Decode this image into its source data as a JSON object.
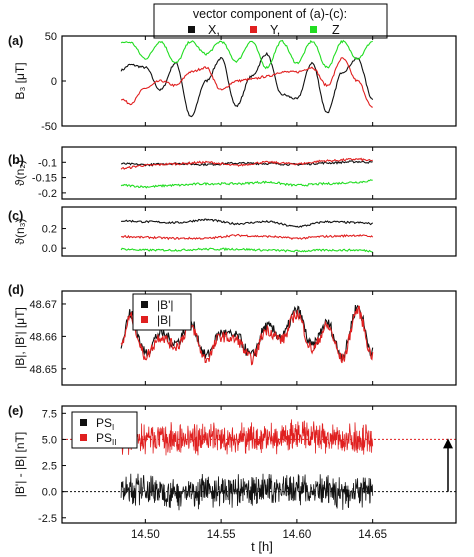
{
  "legend_top": {
    "title": "vector component of (a)-(c):",
    "items": [
      {
        "label": "X,",
        "color": "#111111"
      },
      {
        "label": "Y,",
        "color": "#e02020"
      },
      {
        "label": "Z",
        "color": "#22dd22"
      }
    ]
  },
  "colors": {
    "black": "#111111",
    "red": "#e02020",
    "green": "#22dd22",
    "axis": "#000000"
  },
  "x_axis": {
    "label": "t [h]",
    "ticks": [
      14.5,
      14.55,
      14.6,
      14.65
    ],
    "tick_labels": [
      "14.50",
      "14.55",
      "14.60",
      "14.65"
    ],
    "range": [
      14.445,
      14.705
    ]
  },
  "chart_data": [
    {
      "type": "line",
      "panel": "(a)",
      "ylabel": "B₃ [μT]",
      "ylabel_parts": {
        "base": "B",
        "sub": "3",
        "unit": "[μT]"
      },
      "ylim": [
        -50,
        50
      ],
      "y_ticks": [
        -50,
        0,
        50
      ],
      "y_tick_labels": [
        "-50",
        "0",
        "50"
      ],
      "x": [
        14.484,
        14.49,
        14.5,
        14.51,
        14.52,
        14.53,
        14.54,
        14.55,
        14.56,
        14.57,
        14.58,
        14.59,
        14.6,
        14.61,
        14.62,
        14.63,
        14.64,
        14.65
      ],
      "series": [
        {
          "name": "X",
          "color": "#111111",
          "values": [
            12,
            18,
            15,
            -10,
            20,
            -40,
            0,
            25,
            -28,
            5,
            30,
            -15,
            -20,
            20,
            -35,
            10,
            25,
            -20
          ]
        },
        {
          "name": "Y",
          "color": "#e02020",
          "values": [
            -20,
            -25,
            -8,
            0,
            -5,
            10,
            15,
            -10,
            0,
            2,
            5,
            10,
            10,
            15,
            -5,
            25,
            0,
            -30
          ]
        },
        {
          "name": "Z",
          "color": "#22dd22",
          "values": [
            43,
            43,
            25,
            44,
            20,
            44,
            30,
            44,
            22,
            44,
            15,
            44,
            20,
            44,
            15,
            44,
            25,
            44
          ]
        }
      ]
    },
    {
      "type": "line",
      "panel": "(b)",
      "ylabel": "ϑ(n₂)",
      "ylabel_parts": {
        "base": "ϑ(n",
        "sub": "2",
        "tail": ")"
      },
      "ylim": [
        -0.22,
        -0.05
      ],
      "y_ticks": [
        -0.1,
        -0.15,
        -0.2
      ],
      "y_tick_labels": [
        "-0.1",
        "-0.15",
        "-0.2"
      ],
      "x": [
        14.484,
        14.5,
        14.52,
        14.54,
        14.56,
        14.58,
        14.6,
        14.62,
        14.64,
        14.65
      ],
      "series": [
        {
          "name": "X",
          "color": "#111111",
          "values": [
            -0.105,
            -0.108,
            -0.104,
            -0.107,
            -0.103,
            -0.104,
            -0.107,
            -0.102,
            -0.098,
            -0.1
          ]
        },
        {
          "name": "Y",
          "color": "#e02020",
          "values": [
            -0.12,
            -0.11,
            -0.105,
            -0.1,
            -0.11,
            -0.1,
            -0.105,
            -0.095,
            -0.09,
            -0.095
          ]
        },
        {
          "name": "Z",
          "color": "#22dd22",
          "values": [
            -0.175,
            -0.18,
            -0.175,
            -0.17,
            -0.17,
            -0.165,
            -0.175,
            -0.17,
            -0.165,
            -0.16
          ]
        }
      ]
    },
    {
      "type": "line",
      "panel": "(c)",
      "ylabel": "ϑ(n₃)",
      "ylabel_parts": {
        "base": "ϑ(n",
        "sub": "3",
        "tail": ")"
      },
      "ylim": [
        -0.08,
        0.42
      ],
      "y_ticks": [
        0.0,
        0.2
      ],
      "y_tick_labels": [
        "0.0",
        "0.2"
      ],
      "x": [
        14.484,
        14.5,
        14.52,
        14.54,
        14.56,
        14.58,
        14.6,
        14.62,
        14.64,
        14.65
      ],
      "series": [
        {
          "name": "X",
          "color": "#111111",
          "values": [
            0.28,
            0.27,
            0.26,
            0.29,
            0.25,
            0.27,
            0.22,
            0.27,
            0.26,
            0.25
          ]
        },
        {
          "name": "Y",
          "color": "#e02020",
          "values": [
            0.12,
            0.11,
            0.1,
            0.1,
            0.13,
            0.12,
            0.1,
            0.12,
            0.13,
            0.12
          ]
        },
        {
          "name": "Z",
          "color": "#22dd22",
          "values": [
            -0.01,
            -0.02,
            -0.02,
            -0.01,
            -0.01,
            -0.02,
            -0.03,
            -0.02,
            -0.02,
            -0.03
          ]
        }
      ]
    },
    {
      "type": "line",
      "panel": "(d)",
      "ylabel": "|B|, |B'| [μT]",
      "ylim": [
        48.645,
        48.674
      ],
      "y_ticks": [
        48.65,
        48.66,
        48.67
      ],
      "y_tick_labels": [
        "48.65",
        "48.66",
        "48.67"
      ],
      "legend": [
        {
          "label": "|B'|",
          "color": "#111111"
        },
        {
          "label": "|B|",
          "color": "#e02020"
        }
      ],
      "x": [
        14.484,
        14.49,
        14.5,
        14.51,
        14.52,
        14.53,
        14.54,
        14.55,
        14.56,
        14.57,
        14.58,
        14.59,
        14.6,
        14.61,
        14.62,
        14.63,
        14.64,
        14.65
      ],
      "series": [
        {
          "name": "|B'|",
          "color": "#111111",
          "values": [
            48.658,
            48.667,
            48.655,
            48.661,
            48.658,
            48.664,
            48.654,
            48.661,
            48.66,
            48.654,
            48.663,
            48.66,
            48.668,
            48.657,
            48.664,
            48.654,
            48.669,
            48.655
          ]
        },
        {
          "name": "|B|",
          "color": "#e02020",
          "values": [
            48.657,
            48.666,
            48.654,
            48.66,
            48.657,
            48.663,
            48.653,
            48.66,
            48.659,
            48.653,
            48.662,
            48.659,
            48.667,
            48.656,
            48.663,
            48.653,
            48.668,
            48.654
          ]
        }
      ]
    },
    {
      "type": "line",
      "panel": "(e)",
      "ylabel": "|B'| - |B| [nT]",
      "ylim": [
        -3.0,
        8.2
      ],
      "y_ticks": [
        -2.5,
        0.0,
        2.5,
        5.0,
        7.5
      ],
      "y_tick_labels": [
        "-2.5",
        "0.0",
        "2.5",
        "5.0",
        "7.5"
      ],
      "legend": [
        {
          "label": "PS",
          "sub": "I",
          "color": "#111111"
        },
        {
          "label": "PS",
          "sub": "II",
          "color": "#e02020"
        }
      ],
      "reference_lines": [
        0.0,
        5.0
      ],
      "x": [
        14.484,
        14.5,
        14.52,
        14.54,
        14.56,
        14.58,
        14.6,
        14.62,
        14.64,
        14.65
      ],
      "series": [
        {
          "name": "PS_I",
          "color": "#111111",
          "mean": 0.0,
          "spread": 1.2,
          "values": [
            0.0,
            0.2,
            -0.1,
            0.1,
            0.0,
            0.2,
            0.3,
            -0.1,
            0.0,
            0.1
          ]
        },
        {
          "name": "PS_II",
          "color": "#e02020",
          "mean": 5.0,
          "spread": 1.2,
          "values": [
            5.0,
            5.1,
            4.9,
            5.2,
            5.0,
            5.1,
            5.3,
            5.0,
            5.1,
            5.0
          ]
        }
      ]
    }
  ],
  "panel_labels": [
    "(a)",
    "(b)",
    "(c)",
    "(d)",
    "(e)"
  ]
}
